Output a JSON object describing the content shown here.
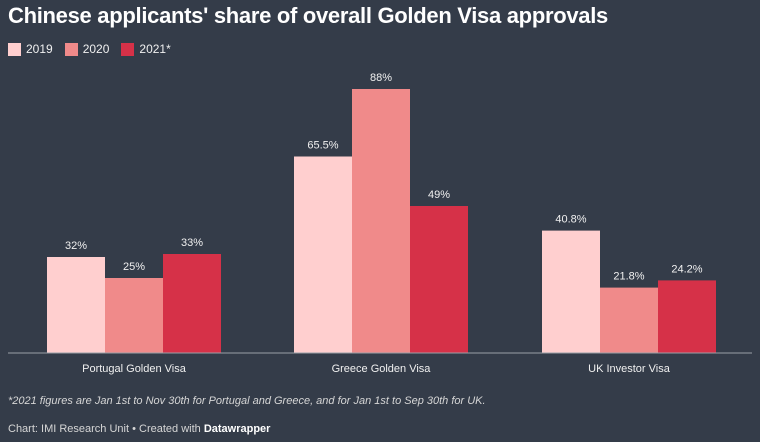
{
  "chart_data": {
    "type": "bar",
    "title": "Chinese applicants' share of overall Golden Visa approvals",
    "categories": [
      "Portugal Golden Visa",
      "Greece Golden Visa",
      "UK Investor Visa"
    ],
    "series": [
      {
        "name": "2019",
        "color": "#ffcfcf",
        "values": [
          32,
          65.5,
          40.8
        ],
        "labels": [
          "32%",
          "65.5%",
          "40.8%"
        ]
      },
      {
        "name": "2020",
        "color": "#f08a8a",
        "values": [
          25,
          88,
          21.8
        ],
        "labels": [
          "25%",
          "88%",
          "21.8%"
        ]
      },
      {
        "name": "2021*",
        "color": "#d63148",
        "values": [
          33,
          49,
          24.2
        ],
        "labels": [
          "33%",
          "49%",
          "24.2%"
        ]
      }
    ],
    "ylim": [
      0,
      100
    ],
    "xlabel": "",
    "ylabel": "",
    "grid": false,
    "legend": "top-left"
  },
  "footer": {
    "note": "*2021 figures are Jan 1st to Nov 30th for Portugal and Greece, and for Jan 1st to Sep 30th for UK.",
    "credit_prefix": "Chart: IMI Research Unit • Created with ",
    "credit_brand": "Datawrapper"
  }
}
